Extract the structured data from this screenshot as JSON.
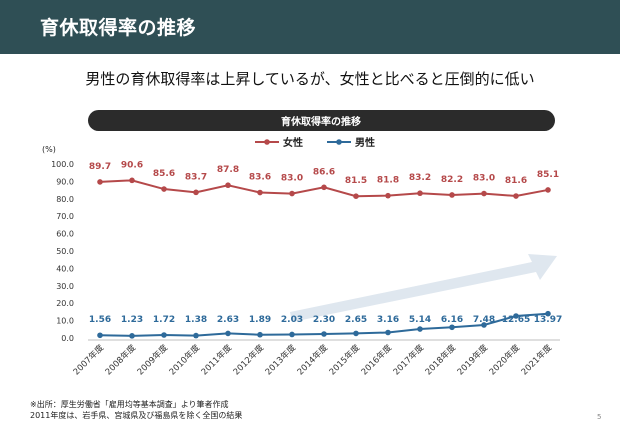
{
  "header": {
    "title": "育休取得率の推移"
  },
  "subtitle": "男性の育休取得率は上昇しているが、女性と比べると圧倒的に低い",
  "footnote": [
    "※出所：厚生労働省「雇用均等基本調査」より筆者作成",
    "2011年度は、岩手県、宮城県及び福島県を除く全国の結果"
  ],
  "page_number": "5",
  "colors": {
    "header_bg": "#2f4f55",
    "female": "#b5494a",
    "male": "#2e6a9a",
    "arrow": "#dfe7ef"
  },
  "chart_data": {
    "type": "line",
    "title": "育休取得率の推移",
    "unit_label": "(%)",
    "ylim": [
      0,
      100
    ],
    "yticks": [
      "100.0",
      "90.0",
      "80.0",
      "70.0",
      "60.0",
      "50.0",
      "40.0",
      "30.0",
      "20.0",
      "10.0",
      "0.0"
    ],
    "grid": false,
    "legend_position": "top-center",
    "categories": [
      "2007年度",
      "2008年度",
      "2009年度",
      "2010年度",
      "2011年度",
      "2012年度",
      "2013年度",
      "2014年度",
      "2015年度",
      "2016年度",
      "2017年度",
      "2018年度",
      "2019年度",
      "2020年度",
      "2021年度"
    ],
    "series": [
      {
        "name": "女性",
        "values": [
          89.7,
          90.6,
          85.6,
          83.7,
          87.8,
          83.6,
          83.0,
          86.6,
          81.5,
          81.8,
          83.2,
          82.2,
          83.0,
          81.6,
          85.1
        ],
        "labels": [
          "89.7",
          "90.6",
          "85.6",
          "83.7",
          "87.8",
          "83.6",
          "83.0",
          "86.6",
          "81.5",
          "81.8",
          "83.2",
          "82.2",
          "83.0",
          "81.6",
          "85.1"
        ]
      },
      {
        "name": "男性",
        "values": [
          1.56,
          1.23,
          1.72,
          1.38,
          2.63,
          1.89,
          2.03,
          2.3,
          2.65,
          3.16,
          5.14,
          6.16,
          7.48,
          12.65,
          13.97
        ],
        "labels": [
          "1.56",
          "1.23",
          "1.72",
          "1.38",
          "2.63",
          "1.89",
          "2.03",
          "2.30",
          "2.65",
          "3.16",
          "5.14",
          "6.16",
          "7.48",
          "12.65",
          "13.97"
        ]
      }
    ]
  }
}
